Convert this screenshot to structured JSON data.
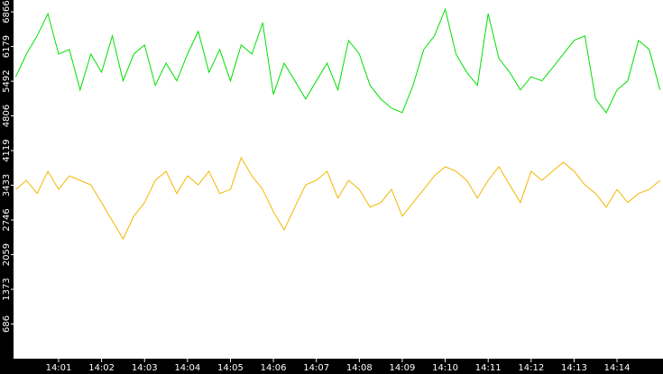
{
  "chart_data": {
    "type": "line",
    "x": [
      0,
      0.25,
      0.5,
      0.75,
      1,
      1.25,
      1.5,
      1.75,
      2,
      2.25,
      2.5,
      2.75,
      3,
      3.25,
      3.5,
      3.75,
      4,
      4.25,
      4.5,
      4.75,
      5,
      5.25,
      5.5,
      5.75,
      6,
      6.25,
      6.5,
      6.75,
      7,
      7.25,
      7.5,
      7.75,
      8,
      8.25,
      8.5,
      8.75,
      9,
      9.25,
      9.5,
      9.75,
      10,
      10.25,
      10.5,
      10.75,
      11,
      11.25,
      11.5,
      11.75,
      12,
      12.25,
      12.5,
      12.75,
      13,
      13.25,
      13.5,
      13.75,
      14,
      14.25,
      14.5,
      14.75,
      15
    ],
    "series": [
      {
        "color": "#00e000",
        "values": [
          5580,
          6030,
          6390,
          6830,
          6030,
          6120,
          5320,
          6030,
          5670,
          6390,
          5500,
          6030,
          6210,
          5410,
          5850,
          5500,
          6030,
          6480,
          5670,
          6120,
          5500,
          6210,
          6030,
          6650,
          5230,
          5850,
          5500,
          5140,
          5500,
          5850,
          5320,
          6300,
          6030,
          5410,
          5140,
          4960,
          4870,
          5410,
          6120,
          6390,
          6920,
          6030,
          5670,
          5410,
          6830,
          5940,
          5670,
          5320,
          5580,
          5500,
          5760,
          6030,
          6300,
          6390,
          5140,
          4870,
          5320,
          5500,
          6300,
          6120,
          5320
        ]
      },
      {
        "color": "#f2b700",
        "values": [
          3350,
          3530,
          3270,
          3710,
          3350,
          3620,
          3530,
          3440,
          3090,
          2730,
          2370,
          2820,
          3090,
          3530,
          3710,
          3270,
          3620,
          3440,
          3710,
          3270,
          3350,
          3980,
          3620,
          3350,
          2910,
          2550,
          3000,
          3440,
          3530,
          3710,
          3180,
          3530,
          3350,
          3000,
          3090,
          3350,
          2820,
          3090,
          3350,
          3620,
          3800,
          3710,
          3530,
          3180,
          3530,
          3800,
          3440,
          3090,
          3710,
          3530,
          3710,
          3890,
          3710,
          3440,
          3270,
          3000,
          3350,
          3090,
          3270,
          3350,
          3530
        ]
      }
    ],
    "xlim": [
      -0.05,
      15.07
    ],
    "xticks": [
      {
        "value": 1,
        "label": "14:01"
      },
      {
        "value": 2,
        "label": "14:02"
      },
      {
        "value": 3,
        "label": "14:03"
      },
      {
        "value": 4,
        "label": "14:04"
      },
      {
        "value": 5,
        "label": "14:05"
      },
      {
        "value": 6,
        "label": "14:06"
      },
      {
        "value": 7,
        "label": "14:07"
      },
      {
        "value": 8,
        "label": "14:08"
      },
      {
        "value": 9,
        "label": "14:09"
      },
      {
        "value": 10,
        "label": "14:10"
      },
      {
        "value": 11,
        "label": "14:11"
      },
      {
        "value": 12,
        "label": "14:12"
      },
      {
        "value": 13,
        "label": "14:13"
      },
      {
        "value": 14,
        "label": "14:14"
      }
    ],
    "ylim": [
      0,
      7100
    ],
    "yticks": [
      686,
      1373,
      2059,
      2746,
      3433,
      4119,
      4806,
      5492,
      6179,
      6866
    ]
  }
}
